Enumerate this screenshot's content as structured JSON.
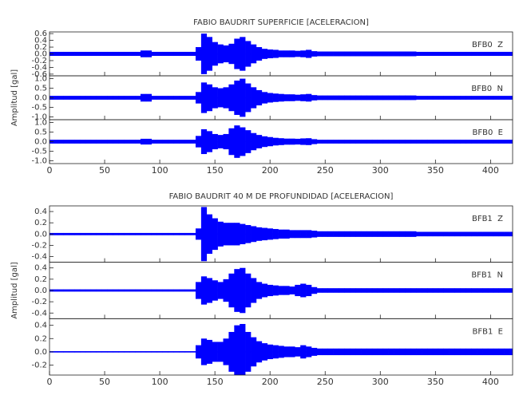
{
  "chart_data": [
    {
      "type": "envelope",
      "title": "FABIO BAUDRIT SUPERFICIE [ACELERACION]",
      "ylabel": "Amplitud [gal]",
      "xlim": [
        0,
        420
      ],
      "xticks": [
        0,
        50,
        100,
        150,
        200,
        250,
        300,
        350,
        400
      ],
      "x": [
        0,
        5,
        10,
        15,
        20,
        25,
        30,
        35,
        40,
        45,
        50,
        55,
        60,
        65,
        70,
        75,
        80,
        85,
        90,
        95,
        100,
        105,
        110,
        115,
        120,
        125,
        130,
        135,
        140,
        145,
        150,
        155,
        160,
        165,
        170,
        175,
        180,
        185,
        190,
        195,
        200,
        205,
        210,
        215,
        220,
        225,
        230,
        235,
        240,
        245,
        250,
        255,
        260,
        265,
        270,
        275,
        280,
        285,
        290,
        295,
        300,
        305,
        310,
        315,
        320,
        325,
        330,
        335,
        340,
        345,
        350,
        355,
        360,
        365,
        370,
        375,
        380,
        385,
        390,
        395,
        400,
        405,
        410,
        415,
        420
      ],
      "series": [
        {
          "name": "BFB0  Z",
          "color": "#0000ff",
          "ylim": [
            -0.65,
            0.65
          ],
          "yticks": [
            -0.6,
            -0.4,
            -0.2,
            {
              "value": 0,
              "label": "0.0"
            },
            0.2,
            0.4,
            0.6
          ],
          "values": [
            0.06,
            0.06,
            0.06,
            0.06,
            0.06,
            0.06,
            0.06,
            0.06,
            0.06,
            0.06,
            0.06,
            0.06,
            0.06,
            0.06,
            0.06,
            0.06,
            0.06,
            0.1,
            0.1,
            0.06,
            0.06,
            0.06,
            0.06,
            0.06,
            0.06,
            0.06,
            0.06,
            0.2,
            0.6,
            0.5,
            0.35,
            0.28,
            0.25,
            0.3,
            0.45,
            0.5,
            0.38,
            0.28,
            0.2,
            0.15,
            0.13,
            0.12,
            0.1,
            0.1,
            0.1,
            0.09,
            0.1,
            0.12,
            0.08,
            0.07,
            0.07,
            0.07,
            0.07,
            0.07,
            0.07,
            0.07,
            0.07,
            0.07,
            0.07,
            0.07,
            0.07,
            0.07,
            0.07,
            0.07,
            0.07,
            0.07,
            0.07,
            0.06,
            0.06,
            0.06,
            0.06,
            0.06,
            0.06,
            0.06,
            0.06,
            0.06,
            0.06,
            0.06,
            0.06,
            0.06,
            0.06,
            0.06,
            0.06,
            0.06,
            0.06
          ]
        },
        {
          "name": "BFB0  N",
          "color": "#0000ff",
          "ylim": [
            -1.15,
            1.15
          ],
          "yticks": [
            {
              "value": -1,
              "label": "-1.0"
            },
            -0.5,
            {
              "value": 0,
              "label": "0.0"
            },
            0.5,
            {
              "value": 1,
              "label": "1.0"
            }
          ],
          "values": [
            0.1,
            0.1,
            0.1,
            0.1,
            0.1,
            0.1,
            0.1,
            0.1,
            0.1,
            0.1,
            0.1,
            0.1,
            0.1,
            0.1,
            0.1,
            0.1,
            0.1,
            0.2,
            0.2,
            0.1,
            0.1,
            0.1,
            0.1,
            0.1,
            0.1,
            0.1,
            0.1,
            0.3,
            0.8,
            0.7,
            0.55,
            0.5,
            0.55,
            0.7,
            0.9,
            1.0,
            0.75,
            0.55,
            0.4,
            0.3,
            0.25,
            0.22,
            0.2,
            0.18,
            0.18,
            0.16,
            0.18,
            0.2,
            0.14,
            0.12,
            0.12,
            0.12,
            0.12,
            0.12,
            0.12,
            0.12,
            0.12,
            0.12,
            0.12,
            0.12,
            0.12,
            0.12,
            0.12,
            0.12,
            0.12,
            0.12,
            0.12,
            0.1,
            0.1,
            0.1,
            0.1,
            0.1,
            0.1,
            0.1,
            0.1,
            0.1,
            0.1,
            0.1,
            0.1,
            0.1,
            0.1,
            0.1,
            0.1,
            0.1,
            0.1
          ]
        },
        {
          "name": "BFB0  E",
          "color": "#0000ff",
          "ylim": [
            -1.15,
            1.15
          ],
          "yticks": [
            {
              "value": -1,
              "label": "-1.0"
            },
            -0.5,
            {
              "value": 0,
              "label": "0.0"
            },
            0.5,
            {
              "value": 1,
              "label": "1.0"
            }
          ],
          "values": [
            0.1,
            0.1,
            0.1,
            0.1,
            0.1,
            0.1,
            0.1,
            0.1,
            0.1,
            0.1,
            0.1,
            0.1,
            0.1,
            0.1,
            0.1,
            0.1,
            0.1,
            0.15,
            0.15,
            0.1,
            0.1,
            0.1,
            0.1,
            0.1,
            0.1,
            0.1,
            0.1,
            0.3,
            0.65,
            0.55,
            0.4,
            0.35,
            0.4,
            0.7,
            0.85,
            0.75,
            0.6,
            0.45,
            0.35,
            0.28,
            0.24,
            0.2,
            0.18,
            0.16,
            0.16,
            0.15,
            0.17,
            0.18,
            0.13,
            0.1,
            0.1,
            0.1,
            0.1,
            0.1,
            0.1,
            0.1,
            0.1,
            0.1,
            0.1,
            0.1,
            0.1,
            0.1,
            0.1,
            0.1,
            0.1,
            0.1,
            0.1,
            0.1,
            0.1,
            0.1,
            0.1,
            0.1,
            0.1,
            0.1,
            0.1,
            0.1,
            0.1,
            0.1,
            0.1,
            0.1,
            0.1,
            0.1,
            0.1,
            0.1,
            0.1
          ]
        }
      ]
    },
    {
      "type": "envelope",
      "title": "FABIO BAUDRIT 40 M DE PROFUNDIDAD [ACELERACION]",
      "ylabel": "Amplitud [gal]",
      "xlim": [
        0,
        420
      ],
      "xticks": [
        0,
        50,
        100,
        150,
        200,
        250,
        300,
        350,
        400
      ],
      "x": [
        0,
        5,
        10,
        15,
        20,
        25,
        30,
        35,
        40,
        45,
        50,
        55,
        60,
        65,
        70,
        75,
        80,
        85,
        90,
        95,
        100,
        105,
        110,
        115,
        120,
        125,
        130,
        135,
        140,
        145,
        150,
        155,
        160,
        165,
        170,
        175,
        180,
        185,
        190,
        195,
        200,
        205,
        210,
        215,
        220,
        225,
        230,
        235,
        240,
        245,
        250,
        255,
        260,
        265,
        270,
        275,
        280,
        285,
        290,
        295,
        300,
        305,
        310,
        315,
        320,
        325,
        330,
        335,
        340,
        345,
        350,
        355,
        360,
        365,
        370,
        375,
        380,
        385,
        390,
        395,
        400,
        405,
        410,
        415,
        420
      ],
      "series": [
        {
          "name": "BFB1  Z",
          "color": "#0000ff",
          "ylim": [
            -0.5,
            0.5
          ],
          "yticks": [
            -0.4,
            -0.2,
            {
              "value": 0,
              "label": "0.0"
            },
            0.2,
            0.4
          ],
          "values": [
            0.02,
            0.02,
            0.02,
            0.02,
            0.02,
            0.02,
            0.02,
            0.02,
            0.02,
            0.02,
            0.02,
            0.02,
            0.02,
            0.02,
            0.02,
            0.02,
            0.02,
            0.02,
            0.02,
            0.02,
            0.02,
            0.02,
            0.02,
            0.02,
            0.02,
            0.02,
            0.02,
            0.1,
            0.48,
            0.35,
            0.28,
            0.22,
            0.2,
            0.2,
            0.2,
            0.18,
            0.16,
            0.14,
            0.12,
            0.11,
            0.1,
            0.09,
            0.08,
            0.08,
            0.07,
            0.07,
            0.07,
            0.07,
            0.06,
            0.05,
            0.05,
            0.05,
            0.05,
            0.05,
            0.05,
            0.05,
            0.05,
            0.05,
            0.05,
            0.05,
            0.05,
            0.05,
            0.05,
            0.05,
            0.05,
            0.05,
            0.05,
            0.04,
            0.04,
            0.04,
            0.04,
            0.04,
            0.04,
            0.04,
            0.04,
            0.04,
            0.04,
            0.04,
            0.04,
            0.04,
            0.04,
            0.04,
            0.04,
            0.04,
            0.04
          ]
        },
        {
          "name": "BFB1  N",
          "color": "#0000ff",
          "ylim": [
            -0.5,
            0.5
          ],
          "yticks": [
            -0.4,
            -0.2,
            {
              "value": 0,
              "label": "0.0"
            },
            0.2,
            0.4
          ],
          "values": [
            0.02,
            0.02,
            0.02,
            0.02,
            0.02,
            0.02,
            0.02,
            0.02,
            0.02,
            0.02,
            0.02,
            0.02,
            0.02,
            0.02,
            0.02,
            0.02,
            0.02,
            0.02,
            0.02,
            0.02,
            0.02,
            0.02,
            0.02,
            0.02,
            0.02,
            0.02,
            0.02,
            0.15,
            0.25,
            0.22,
            0.18,
            0.15,
            0.2,
            0.3,
            0.38,
            0.4,
            0.3,
            0.22,
            0.15,
            0.12,
            0.1,
            0.09,
            0.08,
            0.08,
            0.07,
            0.1,
            0.12,
            0.1,
            0.06,
            0.04,
            0.04,
            0.04,
            0.04,
            0.04,
            0.04,
            0.04,
            0.04,
            0.04,
            0.04,
            0.04,
            0.04,
            0.04,
            0.04,
            0.04,
            0.04,
            0.04,
            0.04,
            0.04,
            0.04,
            0.04,
            0.04,
            0.04,
            0.04,
            0.04,
            0.04,
            0.04,
            0.04,
            0.04,
            0.04,
            0.04,
            0.04,
            0.04,
            0.04,
            0.04,
            0.04
          ]
        },
        {
          "name": "BFB1  E",
          "color": "#0000ff",
          "ylim": [
            -0.35,
            0.5
          ],
          "yticks": [
            -0.2,
            {
              "value": 0,
              "label": "0.0"
            },
            0.2,
            0.4
          ],
          "values": [
            0.01,
            0.01,
            0.01,
            0.01,
            0.01,
            0.01,
            0.01,
            0.01,
            0.01,
            0.01,
            0.01,
            0.01,
            0.01,
            0.01,
            0.01,
            0.01,
            0.01,
            0.01,
            0.01,
            0.01,
            0.01,
            0.01,
            0.01,
            0.01,
            0.01,
            0.01,
            0.01,
            0.1,
            0.2,
            0.18,
            0.15,
            0.15,
            0.2,
            0.3,
            0.4,
            0.42,
            0.3,
            0.22,
            0.16,
            0.13,
            0.11,
            0.1,
            0.09,
            0.08,
            0.08,
            0.07,
            0.1,
            0.08,
            0.06,
            0.05,
            0.05,
            0.05,
            0.05,
            0.05,
            0.05,
            0.05,
            0.05,
            0.05,
            0.05,
            0.05,
            0.05,
            0.05,
            0.05,
            0.05,
            0.05,
            0.05,
            0.05,
            0.05,
            0.05,
            0.05,
            0.05,
            0.05,
            0.05,
            0.05,
            0.05,
            0.05,
            0.05,
            0.05,
            0.05,
            0.05,
            0.05,
            0.05,
            0.05,
            0.05,
            0.05
          ]
        }
      ]
    }
  ]
}
